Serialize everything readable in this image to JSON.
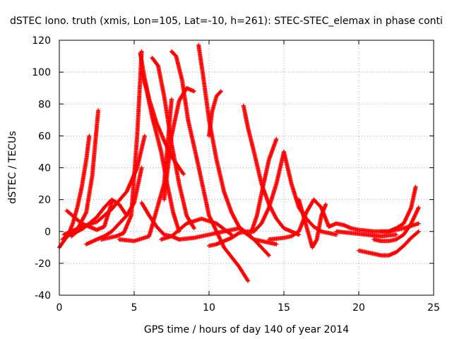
{
  "chart_data": {
    "type": "scatter",
    "title": "dSTEC Iono. truth (xmis, Lon=105, Lat=-10, h=261): STEC-STEC_elemax in phase conti",
    "xlabel": "GPS time / hours of day 140 of year 2014",
    "ylabel": "dSTEC  / TECUs",
    "xlim": [
      0,
      25
    ],
    "ylim": [
      -40,
      120
    ],
    "xticks": [
      "0",
      "5",
      "10",
      "15",
      "20",
      "25"
    ],
    "yticks": [
      "-40",
      "-20",
      "0",
      "20",
      "40",
      "60",
      "80",
      "100",
      "120"
    ],
    "grid": true,
    "marker": "+",
    "color": "#ff0000",
    "series": [
      {
        "x": [
          0.0,
          0.3,
          0.6,
          0.9,
          1.2,
          1.5,
          1.8,
          2.0
        ],
        "y": [
          -10,
          -6,
          -2,
          5,
          15,
          28,
          45,
          60
        ]
      },
      {
        "x": [
          0.2,
          0.5,
          0.9,
          1.3,
          1.8,
          2.2,
          2.6
        ],
        "y": [
          -5,
          -3,
          -1,
          3,
          12,
          35,
          76
        ]
      },
      {
        "x": [
          0.5,
          1.0,
          1.5,
          2.0,
          2.5,
          3.0,
          3.5
        ],
        "y": [
          13,
          9,
          5,
          3,
          1,
          3,
          18
        ]
      },
      {
        "x": [
          0.3,
          0.8,
          1.5,
          2.5,
          3.5,
          4.5,
          5.2,
          5.7
        ],
        "y": [
          -2,
          0,
          3,
          6,
          14,
          25,
          40,
          60
        ]
      },
      {
        "x": [
          0.8,
          1.2,
          1.6,
          2.0,
          2.5,
          3.0,
          3.5,
          4.0,
          4.5
        ],
        "y": [
          -3,
          0,
          2,
          5,
          9,
          15,
          20,
          17,
          10
        ]
      },
      {
        "x": [
          1.8,
          2.5,
          3.0,
          3.5,
          4.0,
          4.5,
          5.0,
          5.5
        ],
        "y": [
          -8,
          -5,
          -3,
          0,
          5,
          10,
          18,
          40
        ]
      },
      {
        "x": [
          2.8,
          3.3,
          3.8,
          4.3,
          4.8,
          5.2,
          5.5
        ],
        "y": [
          -5,
          -4,
          -3,
          -1,
          10,
          60,
          113
        ]
      },
      {
        "x": [
          5.4,
          5.7,
          6.0,
          6.5,
          7.0,
          7.5,
          8.0,
          8.3
        ],
        "y": [
          112,
          96,
          83,
          68,
          57,
          47,
          40,
          36
        ]
      },
      {
        "x": [
          5.5,
          5.8,
          6.2,
          6.8,
          7.2,
          7.6,
          8.0
        ],
        "y": [
          100,
          90,
          72,
          50,
          30,
          12,
          0
        ]
      },
      {
        "x": [
          6.2,
          6.6,
          7.0,
          7.5,
          8.0,
          8.5,
          9.0
        ],
        "y": [
          109,
          104,
          85,
          55,
          30,
          10,
          2
        ]
      },
      {
        "x": [
          5.5,
          6.0,
          6.5,
          7.0,
          7.5,
          8.0
        ],
        "y": [
          18,
          10,
          3,
          -2,
          -3,
          -5
        ]
      },
      {
        "x": [
          4.0,
          5.0,
          6.0,
          7.0,
          7.5
        ],
        "y": [
          -5,
          -6,
          -3,
          30,
          83
        ]
      },
      {
        "x": [
          7.5,
          7.8,
          8.2,
          8.6,
          9.2,
          10.0,
          11.0,
          12.0,
          12.6
        ],
        "y": [
          113,
          110,
          95,
          70,
          45,
          10,
          -10,
          -22,
          -31
        ]
      },
      {
        "x": [
          7.0,
          7.5,
          8.0,
          8.5,
          9.0
        ],
        "y": [
          20,
          60,
          82,
          90,
          88
        ]
      },
      {
        "x": [
          8.0,
          9.0,
          10.0,
          11.0,
          12.0,
          13.0,
          14.0
        ],
        "y": [
          -5,
          -4,
          -2,
          0,
          2,
          -5,
          -15
        ]
      },
      {
        "x": [
          9.3,
          9.6,
          10.0,
          10.5,
          11.0,
          11.5,
          12.0,
          13.0,
          14.5
        ],
        "y": [
          117,
          98,
          70,
          45,
          25,
          12,
          3,
          -5,
          -8
        ]
      },
      {
        "x": [
          10.0,
          10.2,
          10.5,
          10.8
        ],
        "y": [
          60,
          75,
          85,
          88
        ]
      },
      {
        "x": [
          6.8,
          7.5,
          8.5,
          9.5,
          10.5,
          11.5
        ],
        "y": [
          -5,
          -3,
          5,
          8,
          5,
          -2
        ]
      },
      {
        "x": [
          10.0,
          10.5,
          11.0,
          11.5,
          12.0,
          12.5,
          13.0,
          13.5,
          14.0,
          14.5,
          15.0
        ],
        "y": [
          -9,
          -8,
          -6,
          -4,
          -1,
          0,
          0,
          5,
          15,
          30,
          50
        ]
      },
      {
        "x": [
          12.3,
          12.6,
          13.0,
          13.5,
          14.0,
          14.5,
          15.0,
          15.5,
          16.0
        ],
        "y": [
          79,
          65,
          50,
          30,
          17,
          8,
          2,
          0,
          -2
        ]
      },
      {
        "x": [
          12.8,
          13.2,
          13.6,
          14.0,
          14.5
        ],
        "y": [
          -1,
          10,
          28,
          45,
          58
        ]
      },
      {
        "x": [
          15.0,
          15.5,
          16.0,
          16.5,
          17.0,
          17.5,
          18.5
        ],
        "y": [
          50,
          30,
          15,
          8,
          3,
          0,
          -2
        ]
      },
      {
        "x": [
          16.0,
          16.3,
          16.6,
          16.9,
          17.2,
          17.5,
          17.8
        ],
        "y": [
          20,
          10,
          0,
          -10,
          -5,
          10,
          17
        ]
      },
      {
        "x": [
          14.0,
          15.0,
          15.5,
          16.0,
          16.5,
          17.0,
          17.5,
          18.0
        ],
        "y": [
          -5,
          -4,
          -3,
          0,
          12,
          20,
          15,
          3
        ]
      },
      {
        "x": [
          18.0,
          18.5,
          19.0,
          19.5,
          20.0,
          21.0,
          22.0,
          23.0,
          24.0
        ],
        "y": [
          3,
          5,
          4,
          2,
          1,
          0,
          0,
          2,
          5
        ]
      },
      {
        "x": [
          20.0,
          20.5,
          21.0,
          21.5,
          22.0,
          22.5,
          23.0,
          23.5,
          24.0
        ],
        "y": [
          -12,
          -13,
          -14,
          -15,
          -15,
          -13,
          -9,
          -4,
          0
        ]
      },
      {
        "x": [
          21.0,
          21.5,
          22.0,
          22.5,
          23.0,
          23.5,
          24.0
        ],
        "y": [
          -5,
          -6,
          -6,
          -5,
          -2,
          5,
          15
        ]
      },
      {
        "x": [
          21.5,
          22.0,
          22.5,
          23.0,
          23.5,
          23.8
        ],
        "y": [
          0,
          0,
          2,
          5,
          15,
          28
        ]
      },
      {
        "x": [
          18.5,
          19.5,
          20.5,
          21.5,
          22.5
        ],
        "y": [
          0,
          -1,
          -2,
          -3,
          -2
        ]
      }
    ]
  }
}
